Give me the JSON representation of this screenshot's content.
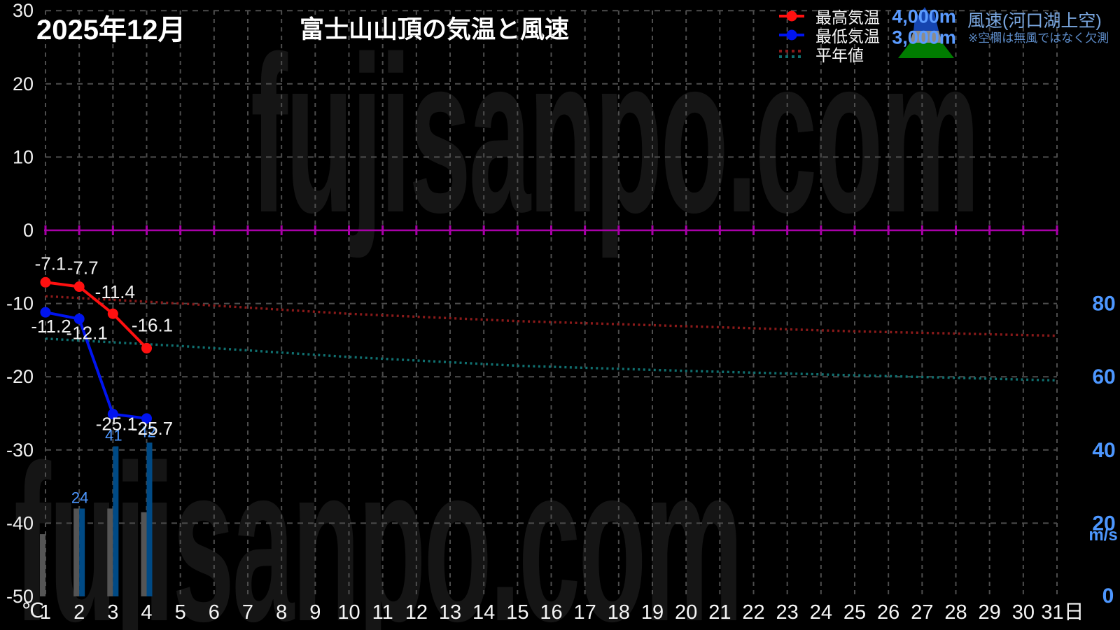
{
  "header": {
    "month_title": "2025年12月",
    "chart_title": "富士山山頂の気温と風速"
  },
  "watermark": {
    "text": "fujisanpo.com"
  },
  "legend": {
    "items": [
      {
        "label": "最高気温",
        "color": "#ff1010"
      },
      {
        "label": "最低気温",
        "color": "#0014f0"
      },
      {
        "label": "平年値",
        "color_max": "#8b1a1a",
        "color_min": "#107070"
      }
    ],
    "wind": {
      "title": "風速(河口湖上空)",
      "note": "※空欄は無風ではなく欠測",
      "levels": [
        {
          "label": "4,000m"
        },
        {
          "label": "3,000m"
        }
      ],
      "mountain": {
        "top_color": "#1545b0",
        "mid_color": "#8c8c8c",
        "base_color": "#007c00"
      }
    }
  },
  "axes": {
    "temp_label_color": "#f0f0f0",
    "wind_label_color": "#4d97ff",
    "grid_color": "#4d4d4d",
    "zero_line_color": "#a800a8"
  },
  "chart_data": {
    "type": "line+bar",
    "title": "富士山山頂の気温と風速",
    "x_axis": {
      "min": 1,
      "max": 31,
      "last_tick_suffix": "日"
    },
    "y_temp": {
      "unit": "℃",
      "min": -50,
      "max": 30,
      "ticks": [
        30,
        20,
        10,
        0,
        -10,
        -20,
        -30,
        -40,
        -50
      ]
    },
    "y_wind": {
      "unit": "m/s",
      "min": 0,
      "max": 160,
      "ticks": [
        80,
        60,
        40,
        20
      ],
      "zero_label": "0"
    },
    "series": [
      {
        "id": "max_temp",
        "name": "最高気温",
        "type": "line",
        "color": "#ff1010",
        "days": [
          1,
          2,
          3,
          4
        ],
        "values": [
          -7.1,
          -7.7,
          -11.4,
          -16.1
        ],
        "labeled": true
      },
      {
        "id": "min_temp",
        "name": "最低気温",
        "type": "line",
        "color": "#0014f0",
        "days": [
          1,
          2,
          3,
          4
        ],
        "values": [
          -11.2,
          -12.1,
          -25.1,
          -25.7
        ],
        "labeled": true
      },
      {
        "id": "normal_max",
        "name": "平年値(最高気温)",
        "type": "dotted",
        "color": "#8b1a1a",
        "days": [
          1,
          5,
          10,
          15,
          20,
          25,
          31
        ],
        "values": [
          -9.0,
          -10.0,
          -11.4,
          -12.4,
          -13.1,
          -13.8,
          -14.4
        ],
        "labeled": false
      },
      {
        "id": "normal_min",
        "name": "平年値(最低気温)",
        "type": "dotted",
        "color": "#107070",
        "days": [
          1,
          5,
          10,
          15,
          20,
          25,
          31
        ],
        "values": [
          -14.8,
          -15.8,
          -17.3,
          -18.5,
          -19.2,
          -19.8,
          -20.5
        ],
        "labeled": false
      },
      {
        "id": "wind_3000m",
        "name": "風速3,000m",
        "type": "bar",
        "color": "#555555",
        "days": [
          1,
          2,
          3,
          4
        ],
        "values": [
          17,
          24,
          24,
          23
        ],
        "labeled": false
      },
      {
        "id": "wind_4000m",
        "name": "風速4,000m",
        "type": "bar",
        "color": "#004a85",
        "days": [
          2,
          3,
          4
        ],
        "values": [
          24,
          41,
          42
        ],
        "labeled": true,
        "label_color": "#4d97ff"
      }
    ]
  }
}
